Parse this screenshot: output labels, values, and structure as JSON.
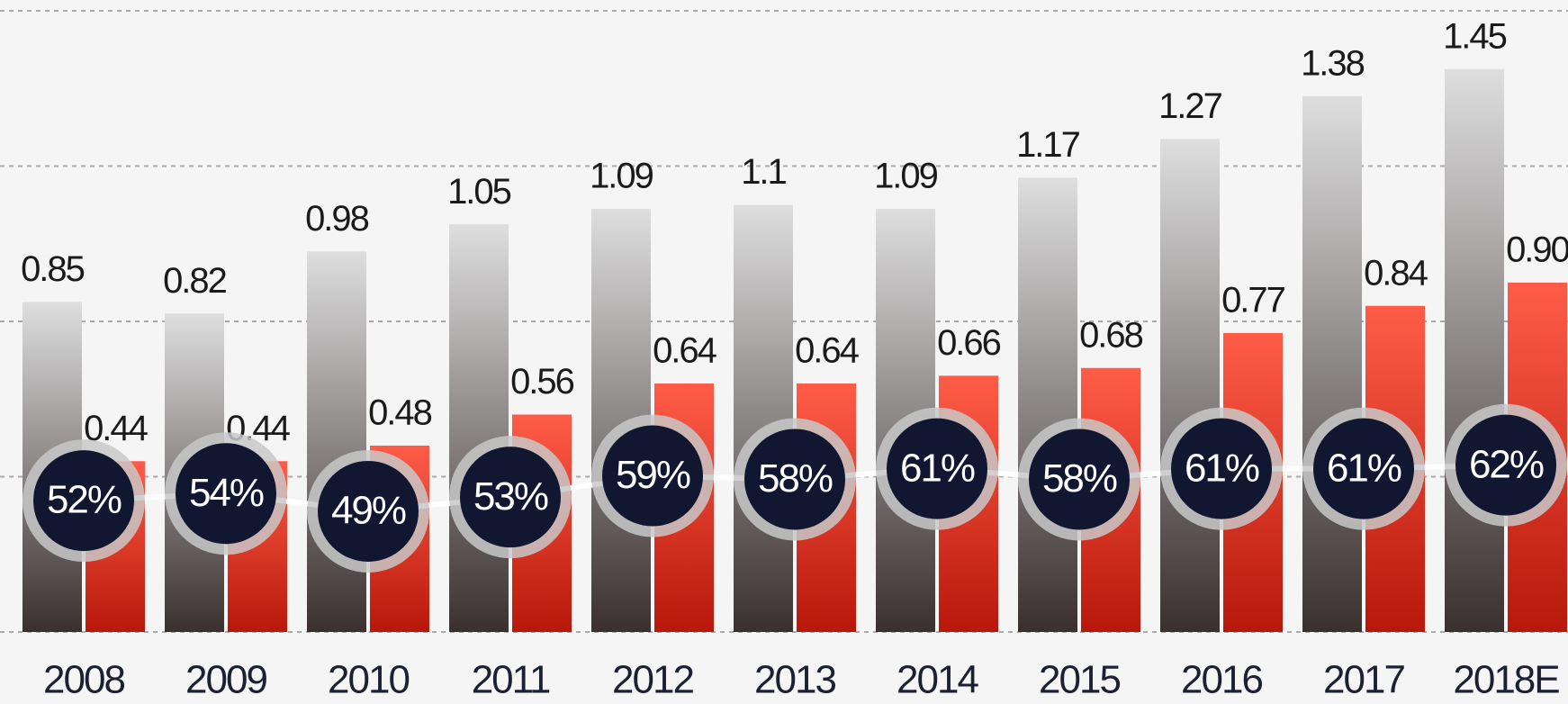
{
  "chart_data": {
    "type": "bar",
    "categories": [
      "2008",
      "2009",
      "2010",
      "2011",
      "2012",
      "2013",
      "2014",
      "2015",
      "2016",
      "2017",
      "2018E"
    ],
    "series": [
      {
        "color": "#3a3030",
        "values": [
          0.85,
          0.82,
          0.98,
          1.05,
          1.09,
          1.1,
          1.09,
          1.17,
          1.27,
          1.38,
          1.45
        ]
      },
      {
        "color": "#c01c0c",
        "values": [
          0.44,
          0.44,
          0.48,
          0.56,
          0.64,
          0.64,
          0.66,
          0.68,
          0.77,
          0.84,
          0.9
        ],
        "value_labels": [
          "0.44",
          "0.44",
          "0.48",
          "0.56",
          "0.64",
          "0.64",
          "0.66",
          "0.68",
          "0.77",
          "0.84",
          "0.90"
        ]
      },
      {
        "type": "line",
        "axis": "y2",
        "color": "#ffffff",
        "values": [
          52,
          54,
          49,
          53,
          59,
          58,
          61,
          58,
          61,
          61,
          62
        ],
        "value_labels": [
          "52%",
          "54%",
          "49%",
          "53%",
          "59%",
          "58%",
          "61%",
          "58%",
          "61%",
          "61%",
          "62%"
        ]
      }
    ],
    "ylim": [
      0,
      1.6
    ],
    "yticks": [
      0,
      0.4,
      0.8,
      1.2,
      1.6
    ],
    "grid": true,
    "y2lim": [
      15,
      190
    ]
  }
}
